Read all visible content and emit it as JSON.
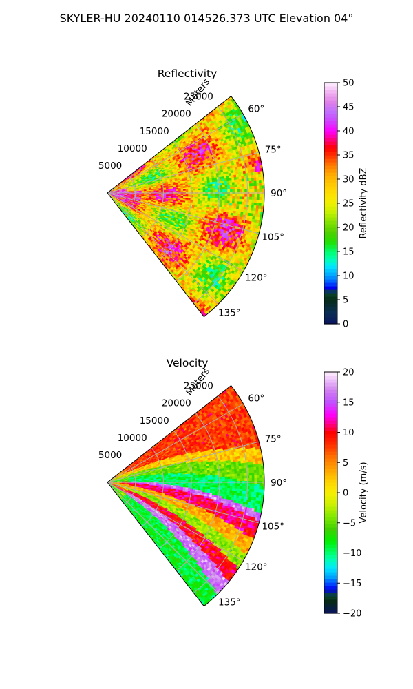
{
  "figure": {
    "suptitle": "SKYLER-HU  20240110  014526.373 UTC Elevation 04°"
  },
  "chart_data": [
    {
      "type": "heatmap",
      "projection": "polar-sector",
      "title": "Reflectivity",
      "range_label": "Meters",
      "range_ticks": [
        "5000",
        "10000",
        "15000",
        "20000",
        "25000"
      ],
      "range_values": [
        5000,
        10000,
        15000,
        20000,
        25000
      ],
      "range_max": 28000,
      "azimuth_ticks": [
        "60°",
        "75°",
        "90°",
        "105°",
        "120°",
        "135°"
      ],
      "azimuth_values": [
        60,
        75,
        90,
        105,
        120,
        135
      ],
      "azimuth_range": [
        52,
        142
      ],
      "grid": true,
      "colorbar": {
        "label": "Reflectivity dBZ",
        "min": 0,
        "max": 50,
        "ticks": [
          "0",
          "5",
          "10",
          "15",
          "20",
          "25",
          "30",
          "35",
          "40",
          "45",
          "50"
        ],
        "tick_values": [
          0,
          5,
          10,
          15,
          20,
          25,
          30,
          35,
          40,
          45,
          50
        ],
        "colormap": [
          [
            0,
            "#0a1560"
          ],
          [
            2.5,
            "#0a2e52"
          ],
          [
            5,
            "#062a16"
          ],
          [
            6.5,
            "#0b4a2d"
          ],
          [
            7.5,
            "#0000ee"
          ],
          [
            8.5,
            "#0050ff"
          ],
          [
            10,
            "#00a0ff"
          ],
          [
            12,
            "#00e8ff"
          ],
          [
            13.5,
            "#00ffb0"
          ],
          [
            15,
            "#00ff70"
          ],
          [
            17,
            "#22e000"
          ],
          [
            19,
            "#4fd000"
          ],
          [
            21,
            "#80e000"
          ],
          [
            23,
            "#c0f000"
          ],
          [
            25,
            "#f0f000"
          ],
          [
            27,
            "#ffe000"
          ],
          [
            29,
            "#ffc800"
          ],
          [
            31,
            "#ffaa00"
          ],
          [
            33,
            "#ff7800"
          ],
          [
            35,
            "#ff3000"
          ],
          [
            36.5,
            "#ff0000"
          ],
          [
            38,
            "#ff0070"
          ],
          [
            40,
            "#ff00ff"
          ],
          [
            42,
            "#d040ff"
          ],
          [
            44,
            "#c070ff"
          ],
          [
            46,
            "#e080e8"
          ],
          [
            48,
            "#f0b0f0"
          ],
          [
            50,
            "#fff0ff"
          ]
        ]
      }
    },
    {
      "type": "heatmap",
      "projection": "polar-sector",
      "title": "Velocity",
      "range_label": "Meters",
      "range_ticks": [
        "5000",
        "10000",
        "15000",
        "20000",
        "25000"
      ],
      "range_values": [
        5000,
        10000,
        15000,
        20000,
        25000
      ],
      "range_max": 28000,
      "azimuth_ticks": [
        "60°",
        "75°",
        "90°",
        "105°",
        "120°",
        "135°"
      ],
      "azimuth_values": [
        60,
        75,
        90,
        105,
        120,
        135
      ],
      "azimuth_range": [
        52,
        142
      ],
      "grid": true,
      "colorbar": {
        "label": "Velocity (m/s)",
        "min": -20,
        "max": 20,
        "ticks": [
          "−20",
          "−15",
          "−10",
          "−5",
          "0",
          "5",
          "10",
          "15",
          "20"
        ],
        "tick_values": [
          -20,
          -15,
          -10,
          -5,
          0,
          5,
          10,
          15,
          20
        ],
        "colormap": [
          [
            -20,
            "#0a1560"
          ],
          [
            -18,
            "#062a16"
          ],
          [
            -17,
            "#0b4a2d"
          ],
          [
            -16,
            "#0000ee"
          ],
          [
            -15,
            "#0050ff"
          ],
          [
            -14,
            "#00a0ff"
          ],
          [
            -12.5,
            "#00e8ff"
          ],
          [
            -11,
            "#00ffb0"
          ],
          [
            -10,
            "#00ff70"
          ],
          [
            -8,
            "#00f000"
          ],
          [
            -6,
            "#40d000"
          ],
          [
            -4,
            "#80e800"
          ],
          [
            -2,
            "#c8f000"
          ],
          [
            0,
            "#f8f000"
          ],
          [
            2,
            "#ffd000"
          ],
          [
            4,
            "#ffa000"
          ],
          [
            6,
            "#ff7000"
          ],
          [
            8,
            "#ff3000"
          ],
          [
            10,
            "#ff0000"
          ],
          [
            11.5,
            "#ff0090"
          ],
          [
            13,
            "#ff00ff"
          ],
          [
            15,
            "#c050ff"
          ],
          [
            17,
            "#d080f0"
          ],
          [
            20,
            "#fff0ff"
          ]
        ]
      }
    }
  ]
}
